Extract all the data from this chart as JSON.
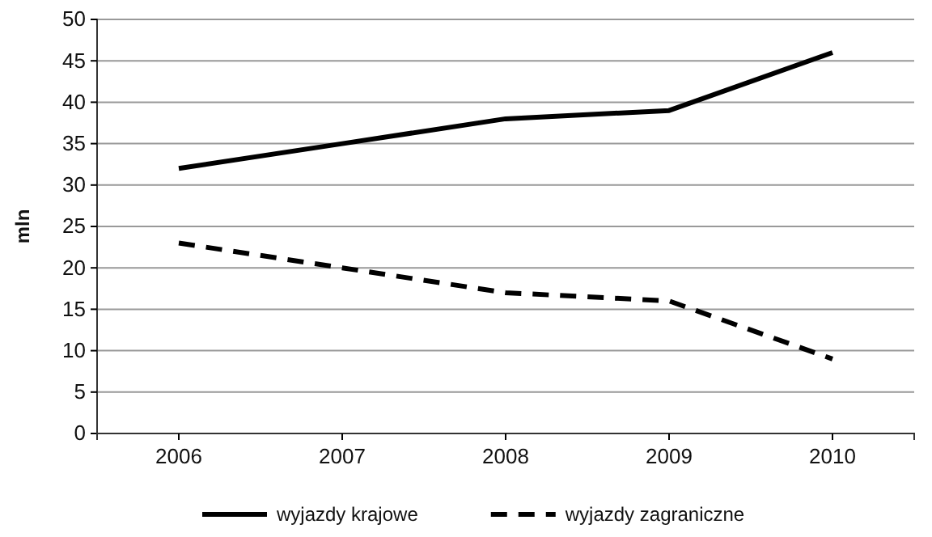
{
  "chart_data": {
    "type": "line",
    "ylabel": "mln",
    "categories": [
      "2006",
      "2007",
      "2008",
      "2009",
      "2010"
    ],
    "series": [
      {
        "name": "wyjazdy krajowe",
        "color": "#000000",
        "line_style": "solid",
        "values": [
          32,
          35,
          38,
          39,
          46
        ]
      },
      {
        "name": "wyjazdy zagraniczne",
        "color": "#000000",
        "line_style": "dashed",
        "values": [
          23,
          20,
          17,
          16,
          9
        ]
      }
    ],
    "ylim": [
      0,
      50
    ],
    "yticks": [
      0,
      5,
      10,
      15,
      20,
      25,
      30,
      35,
      40,
      45,
      50
    ],
    "grid": "y",
    "legend": "bottom",
    "marker": "none"
  }
}
